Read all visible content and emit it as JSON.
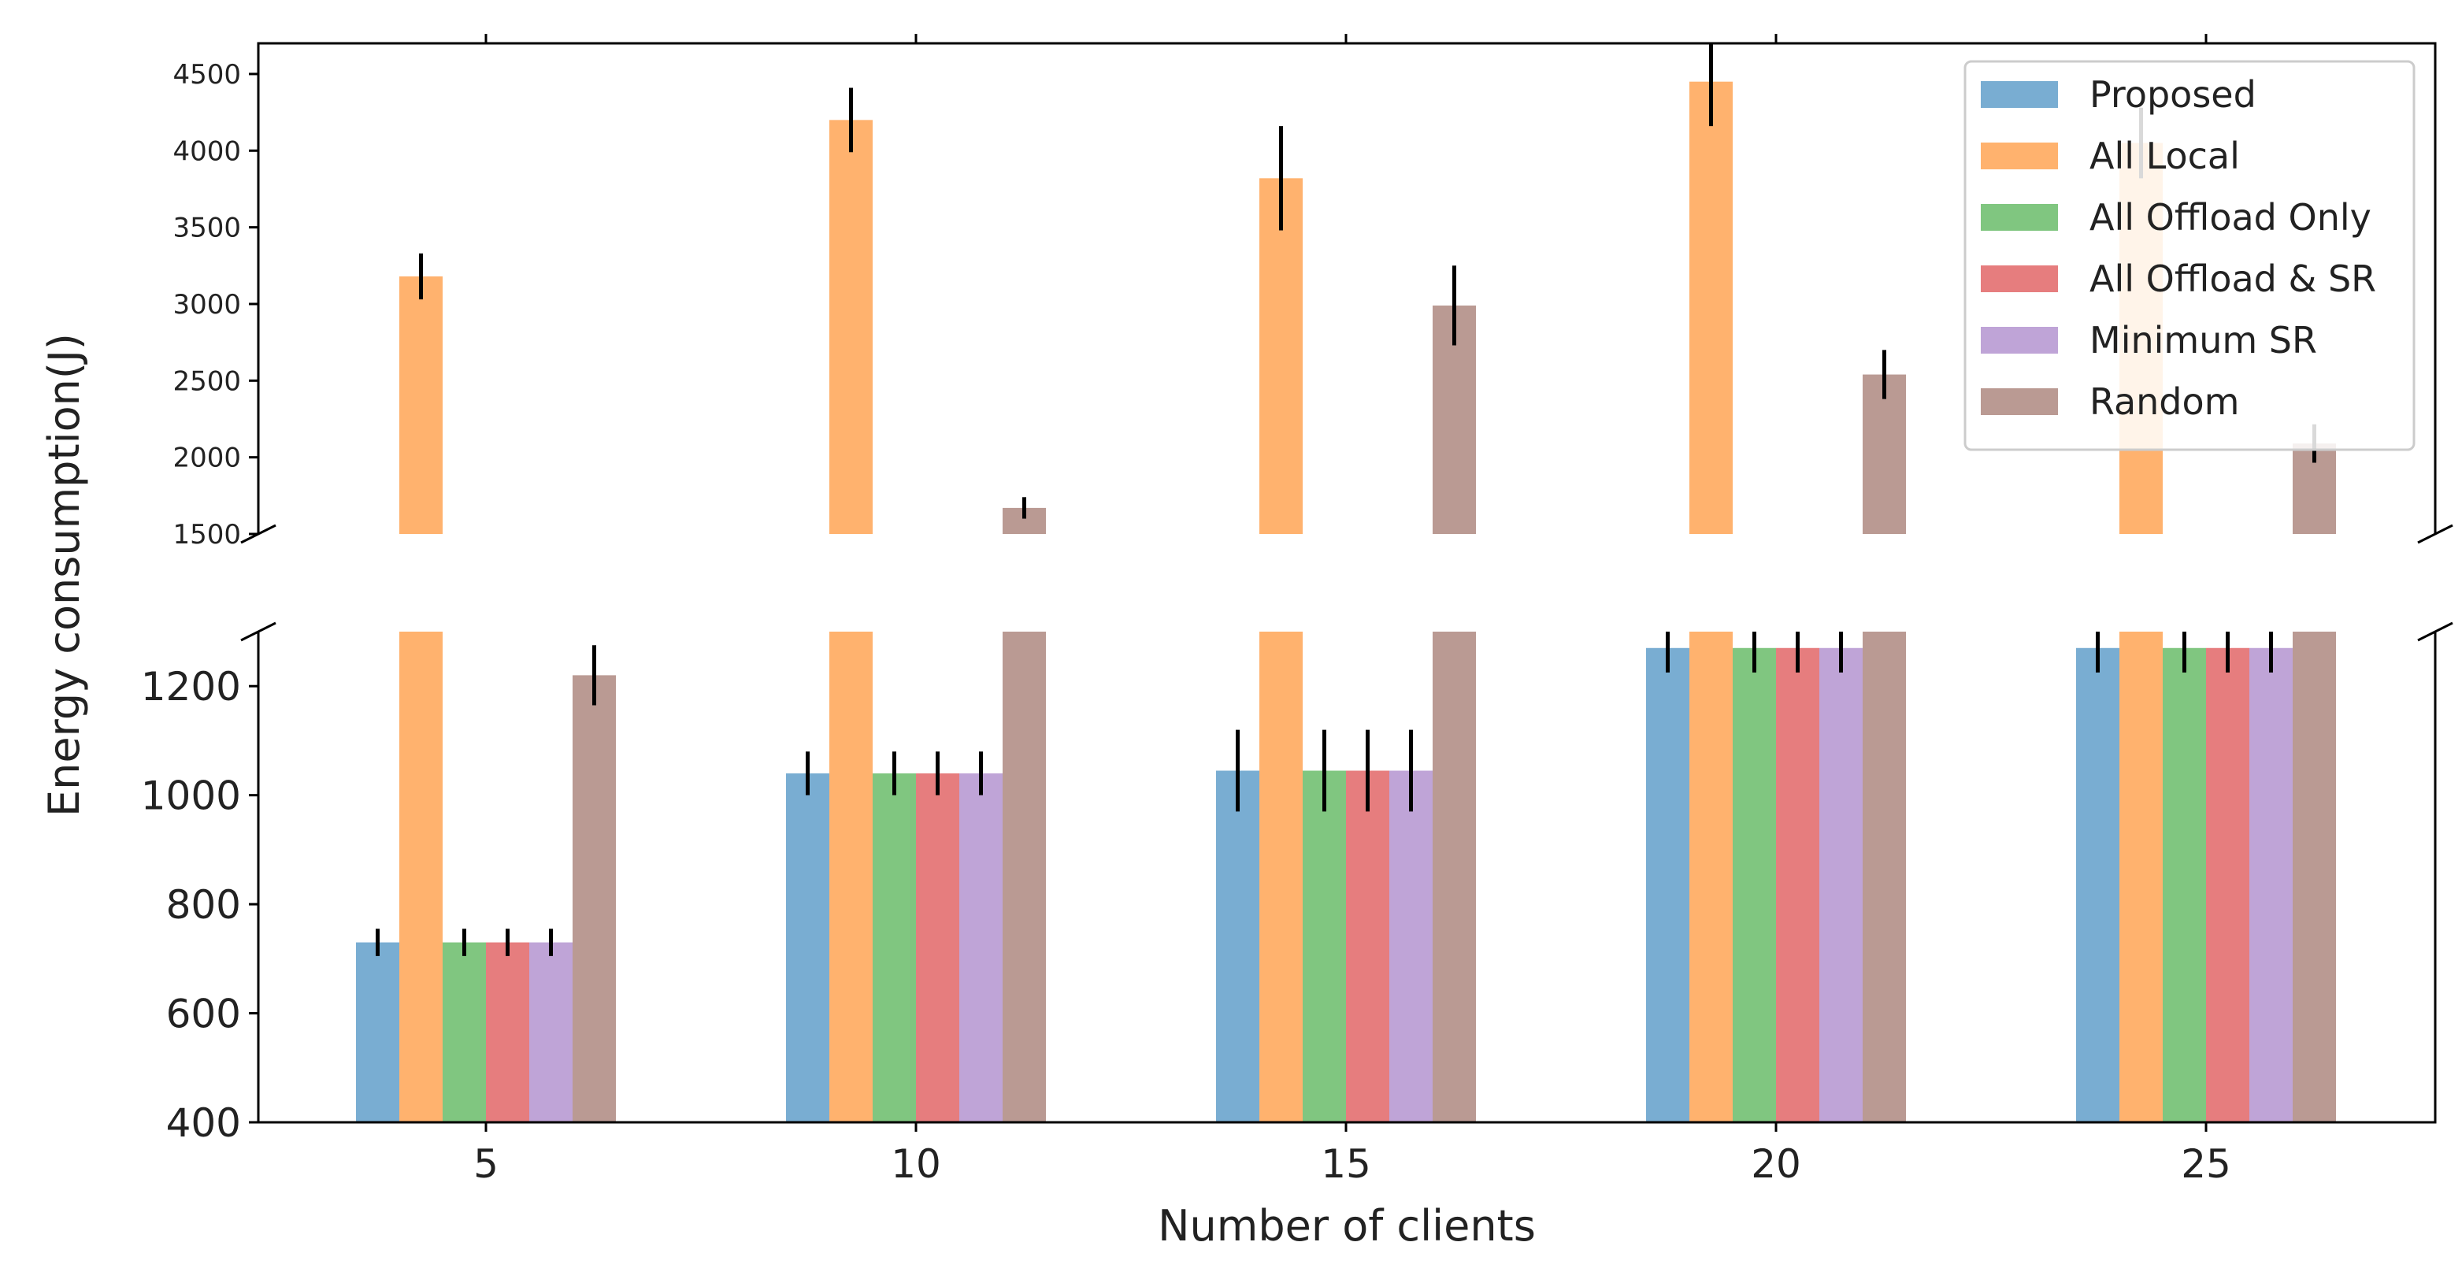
{
  "chart_data": {
    "type": "bar",
    "title": "",
    "xlabel": "Number of clients",
    "ylabel": "Energy consumption(J)",
    "categories": [
      "5",
      "10",
      "15",
      "20",
      "25"
    ],
    "broken_y_axis": true,
    "upper_ylim": [
      1500,
      4700
    ],
    "lower_ylim": [
      400,
      1300
    ],
    "upper_yticks": [
      "1500",
      "2000",
      "2500",
      "3000",
      "3500",
      "4000",
      "4500"
    ],
    "lower_yticks": [
      "400",
      "600",
      "800",
      "1000",
      "1200"
    ],
    "legend_position": "top-right",
    "series": [
      {
        "name": "Proposed",
        "color": "#1f77b4",
        "values": [
          730,
          1040,
          1045,
          1270,
          1270
        ],
        "errors": [
          25,
          40,
          75,
          45,
          45
        ]
      },
      {
        "name": "All Local",
        "color": "#ff7f0e",
        "values": [
          3180,
          4200,
          3820,
          4450,
          4050
        ],
        "errors": [
          150,
          210,
          340,
          290,
          230
        ]
      },
      {
        "name": "All Offload Only",
        "color": "#2ca02c",
        "values": [
          730,
          1040,
          1045,
          1270,
          1270
        ],
        "errors": [
          25,
          40,
          75,
          45,
          45
        ]
      },
      {
        "name": "All Offload & SR",
        "color": "#d62728",
        "values": [
          730,
          1040,
          1045,
          1270,
          1270
        ],
        "errors": [
          25,
          40,
          75,
          45,
          45
        ]
      },
      {
        "name": "Minimum SR",
        "color": "#9467bd",
        "values": [
          730,
          1040,
          1045,
          1270,
          1270
        ],
        "errors": [
          25,
          40,
          75,
          45,
          45
        ]
      },
      {
        "name": "Random",
        "color": "#8c564b",
        "values": [
          1220,
          1670,
          2990,
          2540,
          2090
        ],
        "errors": [
          55,
          70,
          260,
          160,
          125
        ]
      }
    ]
  }
}
